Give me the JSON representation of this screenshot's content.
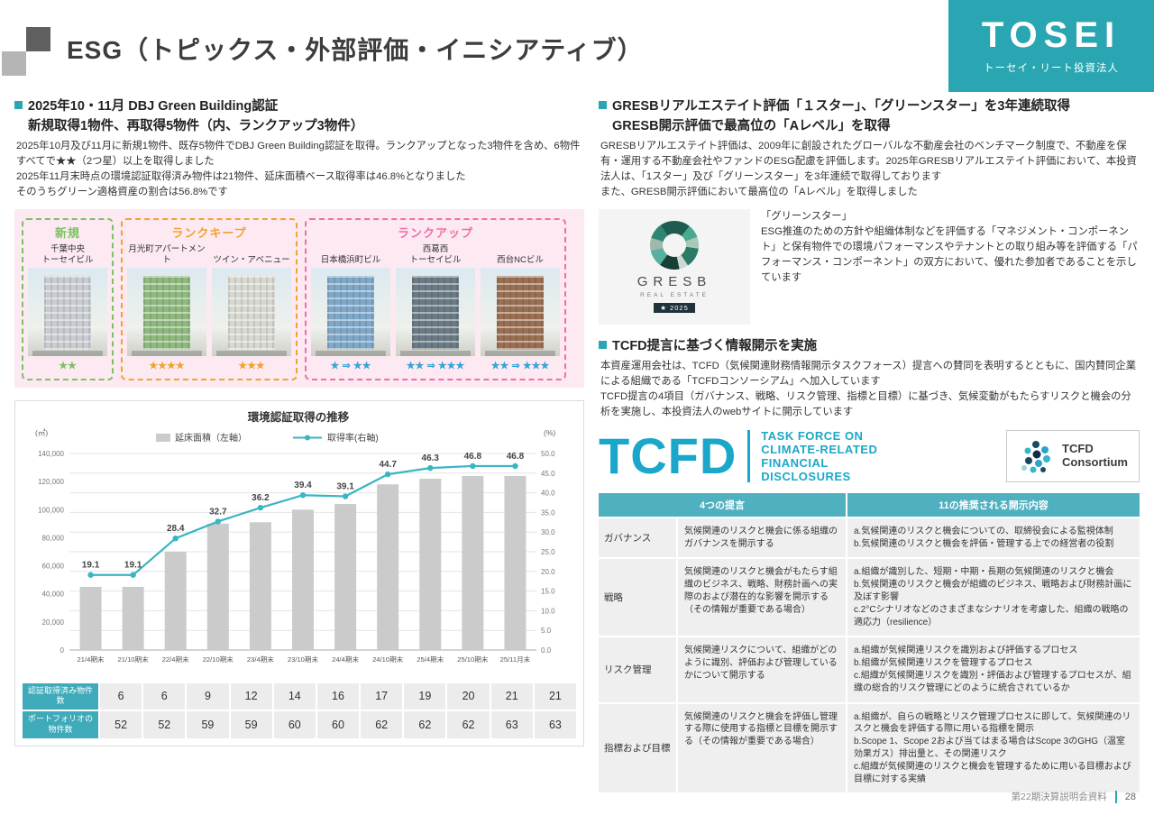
{
  "header": {
    "title": "ESG（トピックス・外部評価・イニシアティブ）",
    "logo": {
      "brand": "TOSEI",
      "subtitle": "トーセイ・リート投資法人"
    }
  },
  "colors": {
    "accent_teal": "#2AA6B2",
    "group_new": "#7CC25F",
    "group_keep": "#F0A32E",
    "group_up": "#F06EAA",
    "rankup_star": "#35A3D8",
    "bar_gray": "#CBCBCB",
    "line_teal": "#3AB5C2",
    "panel_pink": "#FCE9F2"
  },
  "left": {
    "section1": {
      "heading1": "2025年10・11月 DBJ Green Building認証",
      "heading2": "新規取得1物件、再取得5物件（内、ランクアップ3物件）",
      "body": "2025年10月及び11月に新規1物件、既存5物件でDBJ Green Building認証を取得。ランクアップとなった3物件を含め、6物件すべてで★★（2つ星）以上を取得しました\n2025年11月末時点の環境認証取得済み物件は21物件、延床面積ベース取得率は46.8%となりました\nそのうちグリーン適格資産の割合は56.8%です"
    },
    "groups": [
      {
        "id": "new",
        "label": "新規",
        "color": "#7CC25F",
        "star_color": "#7CC25F",
        "buildings": [
          {
            "name": "千葉中央\nトーセイビル",
            "stars": "★★",
            "photo_color": "#C9CDD1"
          }
        ]
      },
      {
        "id": "rank-keep",
        "label": "ランクキープ",
        "color": "#F0A32E",
        "star_color": "#F0A32E",
        "buildings": [
          {
            "name": "月光町アパートメント",
            "stars": "★★★★",
            "photo_color": "#8FB97E"
          },
          {
            "name": "ツイン・アベニュー",
            "stars": "★★★",
            "photo_color": "#D8D8D2"
          }
        ]
      },
      {
        "id": "rank-up",
        "label": "ランクアップ",
        "color": "#F06EAA",
        "star_color": "#35A3D8",
        "buildings": [
          {
            "name": "日本橋浜町ビル",
            "stars": "★ ⇒ ★★",
            "photo_color": "#7FA8C9"
          },
          {
            "name": "西葛西\nトーセイビル",
            "stars": "★★ ⇒ ★★★",
            "photo_color": "#6B7B85"
          },
          {
            "name": "西台NCビル",
            "stars": "★★ ⇒ ★★★",
            "photo_color": "#9A6F52"
          }
        ]
      }
    ]
  },
  "chart_data": {
    "type": "bar",
    "title": "環境認証取得の推移",
    "categories": [
      "21/4期末",
      "21/10期末",
      "22/4期末",
      "22/10期末",
      "23/4期末",
      "23/10期末",
      "24/4期末",
      "24/10期末",
      "25/4期末",
      "25/10期末",
      "25/11月末"
    ],
    "series": [
      {
        "name": "延床面積（左軸）",
        "type": "bar",
        "axis": "left",
        "unit": "㎡",
        "values": [
          45000,
          45000,
          70000,
          90000,
          91000,
          100000,
          104000,
          118000,
          122000,
          124000,
          124000
        ]
      },
      {
        "name": "取得率(右軸)",
        "type": "line",
        "axis": "right",
        "unit": "%",
        "values": [
          19.1,
          19.1,
          28.4,
          32.7,
          36.2,
          39.4,
          39.1,
          44.7,
          46.3,
          46.8,
          46.8
        ]
      }
    ],
    "left_axis": {
      "label": "(㎡)",
      "min": 0,
      "max": 140000,
      "step": 20000
    },
    "right_axis": {
      "label": "(%)",
      "min": 0,
      "max": 50,
      "step": 5
    },
    "grid": true,
    "legend_position": "top",
    "table": {
      "rows": [
        {
          "header": "認証取得済み物件数",
          "values": [
            6,
            6,
            9,
            12,
            14,
            16,
            17,
            19,
            20,
            21,
            21
          ]
        },
        {
          "header": "ポートフォリオの物件数",
          "values": [
            52,
            52,
            59,
            59,
            60,
            60,
            62,
            62,
            62,
            63,
            63
          ]
        }
      ]
    }
  },
  "right": {
    "gresb": {
      "heading1": "GRESBリアルエステイト評価「１スター」、「グリーンスター」を3年連続取得",
      "heading2": "GRESB開示評価で最高位の「Aレベル」を取得",
      "body": "GRESBリアルエステイト評価は、2009年に創設されたグローバルな不動産会社のベンチマーク制度で、不動産を保有・運用する不動産会社やファンドのESG配慮を評価します。2025年GRESBリアルエステイト評価において、本投資法人は、「1スター」及び「グリーンスター」を3年連続で取得しております\nまた、GRESB開示評価において最高位の「Aレベル」を取得しました",
      "logo_word": "GRESB",
      "logo_sub": "REAL ESTATE",
      "logo_badge": "★ 2025",
      "desc": "「グリーンスター」\nESG推進のための方針や組織体制などを評価する「マネジメント・コンポーネント」と保有物件での環境パフォーマンスやテナントとの取り組み等を評価する「パフォーマンス・コンポーネント」の双方において、優れた参加者であることを示しています"
    },
    "tcfd": {
      "heading": "TCFD提言に基づく情報開示を実施",
      "body": "本資産運用会社は、TCFD（気候関連財務情報開示タスクフォース）提言への賛同を表明するとともに、国内賛同企業による組織である「TCFDコンソーシアム」へ加入しています\nTCFD提言の4項目（ガバナンス、戦略、リスク管理、指標と目標）に基づき、気候変動がもたらすリスクと機会の分析を実施し、本投資法人のwebサイトに開示しています",
      "logo_word": "TCFD",
      "logo_lines": "TASK FORCE ON\nCLIMATE-RELATED\nFINANCIAL\nDISCLOSURES",
      "consortium_text": "TCFD\nConsortium"
    },
    "tcfd_table": {
      "col1_header": "4つの提言",
      "col2_header": "11の推奨される開示内容",
      "rows": [
        {
          "category": "ガバナンス",
          "recommendation": "気候関連のリスクと機会に係る組織のガバナンスを開示する",
          "disclosures": [
            "a.気候関連のリスクと機会についての、取締役会による監視体制",
            "b.気候関連のリスクと機会を評価・管理する上での経営者の役割"
          ]
        },
        {
          "category": "戦略",
          "recommendation": "気候関連のリスクと機会がもたらす組織のビジネス、戦略、財務計画への実際のおよび潜在的な影響を開示する（その情報が重要である場合）",
          "disclosures": [
            "a.組織が識別した、短期・中期・長期の気候関連のリスクと機会",
            "b.気候関連のリスクと機会が組織のビジネス、戦略および財務計画に及ぼす影響",
            "c.2°Cシナリオなどのさまざまなシナリオを考慮した、組織の戦略の適応力（resilience）"
          ]
        },
        {
          "category": "リスク管理",
          "recommendation": "気候関連リスクについて、組織がどのように識別、評価および管理しているかについて開示する",
          "disclosures": [
            "a.組織が気候関連リスクを識別および評価するプロセス",
            "b.組織が気候関連リスクを管理するプロセス",
            "c.組織が気候関連リスクを識別・評価および管理するプロセスが、組織の総合的リスク管理にどのように統合されているか"
          ]
        },
        {
          "category": "指標および目標",
          "recommendation": "気候関連のリスクと機会を評価し管理する際に使用する指標と目標を開示する（その情報が重要である場合）",
          "disclosures": [
            "a.組織が、自らの戦略とリスク管理プロセスに即して、気候関連のリスクと機会を評価する際に用いる指標を開示",
            "b.Scope 1、Scope 2および当てはまる場合はScope 3のGHG（温室効果ガス）排出量と、その関連リスク",
            "c.組織が気候関連のリスクと機会を管理するために用いる目標および目標に対する実績"
          ]
        }
      ]
    }
  },
  "footer": {
    "label": "第22期決算説明会資料",
    "page": "28"
  }
}
